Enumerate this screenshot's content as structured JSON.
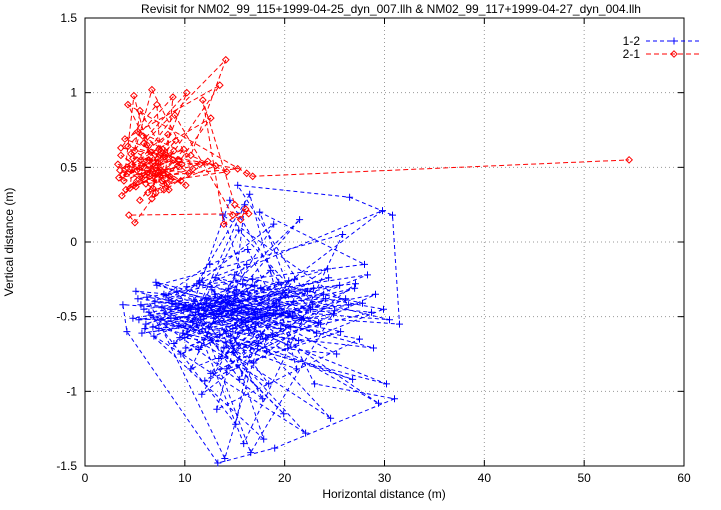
{
  "chart_data": {
    "type": "scatter",
    "title": "Revisit for NM02_99_115+1999-04-25_dyn_007.llh & NM02_99_117+1999-04-27_dyn_004.llh",
    "xlabel": "Horizontal distance (m)",
    "ylabel": "Vertical distance (m)",
    "xlim": [
      0,
      60
    ],
    "ylim": [
      -1.5,
      1.5
    ],
    "xticks": [
      0,
      10,
      20,
      30,
      40,
      50,
      60
    ],
    "yticks": [
      -1.5,
      -1,
      -0.5,
      0,
      0.5,
      1,
      1.5
    ],
    "grid": true,
    "grid_style": "dotted",
    "grid_color": "#9a9a9a",
    "legend_position": "top-right",
    "series": [
      {
        "name": "1-2",
        "color": "#0000ff",
        "marker": "plus",
        "linestyle": "dashed",
        "points": [
          [
            15.2,
            -0.32
          ],
          [
            6.1,
            -0.55
          ],
          [
            24.3,
            -0.18
          ],
          [
            11.4,
            -0.72
          ],
          [
            18.9,
            0.12
          ],
          [
            8.7,
            -0.41
          ],
          [
            27.5,
            -0.65
          ],
          [
            13.2,
            -1.12
          ],
          [
            16.8,
            -0.25
          ],
          [
            5.3,
            -0.38
          ],
          [
            21.7,
            -0.52
          ],
          [
            14.5,
            0.28
          ],
          [
            9.8,
            -0.61
          ],
          [
            29.1,
            -0.35
          ],
          [
            12.6,
            -0.88
          ],
          [
            17.3,
            -0.47
          ],
          [
            7.2,
            -0.29
          ],
          [
            25.8,
            0.05
          ],
          [
            15.9,
            -1.35
          ],
          [
            10.5,
            -0.44
          ],
          [
            19.6,
            -0.58
          ],
          [
            4.8,
            -0.51
          ],
          [
            22.9,
            -0.31
          ],
          [
            14.1,
            -0.67
          ],
          [
            30.2,
            -0.95
          ],
          [
            8.1,
            -0.36
          ],
          [
            16.2,
            -0.15
          ],
          [
            11.9,
            -0.49
          ],
          [
            26.4,
            -0.42
          ],
          [
            13.8,
            0.18
          ],
          [
            18.2,
            -0.73
          ],
          [
            6.8,
            -0.57
          ],
          [
            20.4,
            -0.26
          ],
          [
            15.5,
            -0.92
          ],
          [
            9.2,
            -0.33
          ],
          [
            23.6,
            -0.55
          ],
          [
            12.1,
            -0.38
          ],
          [
            17.8,
            -1.05
          ],
          [
            5.9,
            -0.45
          ],
          [
            28.3,
            -0.22
          ],
          [
            14.8,
            -0.58
          ],
          [
            10.1,
            -0.71
          ],
          [
            19.2,
            -0.41
          ],
          [
            7.6,
            -0.52
          ],
          [
            21.2,
            -0.85
          ],
          [
            16.5,
            0.32
          ],
          [
            11.2,
            -0.28
          ],
          [
            24.9,
            -0.48
          ],
          [
            13.5,
            -0.62
          ],
          [
            29.8,
            0.21
          ],
          [
            8.4,
            -0.39
          ],
          [
            17.1,
            -0.55
          ],
          [
            15.1,
            -1.22
          ],
          [
            6.4,
            -0.47
          ],
          [
            22.3,
            -0.33
          ],
          [
            12.9,
            -0.51
          ],
          [
            18.6,
            -0.19
          ],
          [
            9.5,
            -0.64
          ],
          [
            25.2,
            -0.75
          ],
          [
            14.3,
            -0.36
          ],
          [
            20.8,
            -0.49
          ],
          [
            5.6,
            -0.42
          ],
          [
            27.1,
            -0.28
          ],
          [
            16.9,
            -0.81
          ],
          [
            10.8,
            -0.53
          ],
          [
            19.9,
            -1.15
          ],
          [
            7.9,
            -0.35
          ],
          [
            23.2,
            -0.61
          ],
          [
            13.1,
            -0.24
          ],
          [
            30.5,
            -0.52
          ],
          [
            15.7,
            -0.44
          ],
          [
            8.9,
            -0.68
          ],
          [
            21.5,
            0.15
          ],
          [
            12.4,
            -0.57
          ],
          [
            17.6,
            -0.31
          ],
          [
            6.6,
            -0.49
          ],
          [
            26.8,
            -0.92
          ],
          [
            14.6,
            -0.63
          ],
          [
            19.4,
            -0.27
          ],
          [
            9.9,
            -0.45
          ],
          [
            24.1,
            -0.38
          ],
          [
            11.7,
            -1.02
          ],
          [
            16.1,
            -0.54
          ],
          [
            5.1,
            -0.33
          ],
          [
            28.7,
            -0.47
          ],
          [
            13.9,
            -0.71
          ],
          [
            20.1,
            -0.36
          ],
          [
            7.4,
            -0.58
          ],
          [
            22.6,
            -0.45
          ],
          [
            15.4,
            0.08
          ],
          [
            10.3,
            -0.62
          ],
          [
            18.4,
            -0.95
          ],
          [
            12.2,
            -0.41
          ],
          [
            25.5,
            -0.29
          ],
          [
            8.2,
            -0.55
          ],
          [
            17.4,
            -0.68
          ],
          [
            14.0,
            -1.45
          ],
          [
            6.2,
            -0.37
          ],
          [
            21.9,
            -0.51
          ],
          [
            11.5,
            -0.26
          ],
          [
            29.4,
            -1.08
          ],
          [
            16.4,
            -0.59
          ],
          [
            9.1,
            -0.43
          ],
          [
            23.9,
            -0.35
          ],
          [
            13.4,
            -0.78
          ],
          [
            19.1,
            -0.48
          ],
          [
            5.7,
            -0.61
          ],
          [
            27.8,
            -0.41
          ],
          [
            15.0,
            -0.22
          ],
          [
            10.6,
            -0.85
          ],
          [
            20.6,
            -0.57
          ],
          [
            7.7,
            -0.44
          ],
          [
            24.6,
            -1.18
          ],
          [
            12.7,
            -0.32
          ],
          [
            18.1,
            -0.65
          ],
          [
            8.6,
            -0.51
          ],
          [
            26.1,
            -0.38
          ],
          [
            14.9,
            -0.74
          ],
          [
            21.0,
            -0.25
          ],
          [
            6.9,
            -0.63
          ],
          [
            22.1,
            -1.28
          ],
          [
            11.1,
            -0.47
          ],
          [
            17.0,
            -0.29
          ],
          [
            9.4,
            -0.56
          ],
          [
            28.9,
            -0.71
          ],
          [
            13.6,
            -0.43
          ],
          [
            19.8,
            -0.34
          ],
          [
            5.4,
            -0.52
          ],
          [
            25.0,
            -0.46
          ],
          [
            16.6,
            -1.41
          ],
          [
            10.9,
            -0.39
          ],
          [
            20.3,
            -0.69
          ],
          [
            7.1,
            -0.27
          ],
          [
            23.4,
            -0.54
          ],
          [
            14.4,
            -0.31
          ],
          [
            18.8,
            -0.62
          ],
          [
            12.0,
            -0.93
          ],
          [
            29.9,
            -0.45
          ],
          [
            15.8,
            -0.28
          ],
          [
            8.0,
            -0.48
          ],
          [
            21.4,
            -0.66
          ],
          [
            13.0,
            -0.35
          ],
          [
            17.9,
            -1.32
          ],
          [
            6.0,
            -0.58
          ],
          [
            24.4,
            -0.24
          ],
          [
            11.6,
            -0.52
          ],
          [
            19.5,
            -0.43
          ],
          [
            9.6,
            -0.75
          ],
          [
            27.0,
            -0.31
          ],
          [
            14.7,
            -0.49
          ],
          [
            16.0,
            0.25
          ],
          [
            10.0,
            -0.64
          ],
          [
            22.8,
            -0.42
          ],
          [
            15.3,
            0.38
          ],
          [
            26.5,
            0.3
          ],
          [
            30.8,
            0.18
          ],
          [
            31.5,
            -0.55
          ],
          [
            3.8,
            -0.42
          ],
          [
            4.2,
            -0.6
          ],
          [
            13.3,
            -1.48
          ],
          [
            19.0,
            -1.38
          ],
          [
            31.0,
            -1.05
          ],
          [
            23.0,
            -0.95
          ],
          [
            16.3,
            -0.05
          ],
          [
            12.5,
            -0.15
          ],
          [
            7.0,
            -0.4
          ],
          [
            18.0,
            -0.5
          ],
          [
            25.6,
            -0.6
          ],
          [
            14.2,
            -0.85
          ],
          [
            20.9,
            -0.4
          ],
          [
            17.5,
            0.2
          ],
          [
            28.0,
            -0.15
          ],
          [
            10.2,
            -0.3
          ]
        ]
      },
      {
        "name": "2-1",
        "color": "#ff0000",
        "marker": "diamond",
        "linestyle": "dashed",
        "points": [
          [
            5.2,
            0.48
          ],
          [
            7.8,
            0.62
          ],
          [
            4.1,
            0.35
          ],
          [
            9.3,
            0.51
          ],
          [
            6.5,
            0.44
          ],
          [
            3.6,
            0.58
          ],
          [
            8.2,
            0.39
          ],
          [
            5.8,
            0.71
          ],
          [
            10.4,
            0.46
          ],
          [
            4.7,
            0.52
          ],
          [
            7.1,
            0.33
          ],
          [
            6.2,
            0.65
          ],
          [
            4.9,
            0.98
          ],
          [
            3.9,
            0.41
          ],
          [
            8.8,
            0.55
          ],
          [
            5.5,
            0.28
          ],
          [
            9.9,
            0.62
          ],
          [
            4.4,
            0.47
          ],
          [
            7.5,
            0.58
          ],
          [
            6.8,
            0.36
          ],
          [
            3.3,
            0.52
          ],
          [
            8.5,
            0.44
          ],
          [
            5.0,
            0.61
          ],
          [
            6.7,
            1.02
          ],
          [
            10.8,
            0.49
          ],
          [
            4.9,
            0.38
          ],
          [
            7.3,
            0.53
          ],
          [
            6.0,
            0.45
          ],
          [
            9.1,
            0.68
          ],
          [
            3.7,
            0.31
          ],
          [
            8.0,
            0.57
          ],
          [
            5.4,
            0.42
          ],
          [
            11.5,
            0.52
          ],
          [
            4.3,
            0.64
          ],
          [
            8.8,
            0.97
          ],
          [
            7.9,
            0.35
          ],
          [
            6.4,
            0.55
          ],
          [
            9.6,
            0.41
          ],
          [
            3.5,
            0.48
          ],
          [
            8.3,
            0.72
          ],
          [
            5.7,
            0.51
          ],
          [
            10.1,
            0.38
          ],
          [
            4.6,
            0.59
          ],
          [
            10.2,
            1.0
          ],
          [
            7.0,
            0.46
          ],
          [
            6.7,
            0.29
          ],
          [
            12.3,
            0.54
          ],
          [
            3.4,
            0.43
          ],
          [
            8.9,
            0.61
          ],
          [
            5.1,
            0.37
          ],
          [
            9.4,
            0.55
          ],
          [
            4.0,
            0.69
          ],
          [
            13.5,
            1.05
          ],
          [
            7.6,
            0.48
          ],
          [
            6.3,
            0.33
          ],
          [
            13.1,
            0.51
          ],
          [
            4.8,
            0.56
          ],
          [
            8.6,
            0.42
          ],
          [
            5.9,
            0.66
          ],
          [
            14.1,
            1.22
          ],
          [
            10.6,
            0.58
          ],
          [
            3.8,
            0.45
          ],
          [
            7.4,
            0.62
          ],
          [
            6.1,
            0.39
          ],
          [
            14.2,
            0.47
          ],
          [
            5.3,
            0.74
          ],
          [
            9.7,
            0.52
          ],
          [
            4.5,
            0.36
          ],
          [
            5.5,
            0.88
          ],
          [
            8.1,
            0.58
          ],
          [
            6.9,
            0.44
          ],
          [
            15.3,
            0.49
          ],
          [
            3.6,
            0.63
          ],
          [
            7.2,
            0.92
          ],
          [
            7.7,
            0.41
          ],
          [
            5.6,
            0.55
          ],
          [
            9.0,
            0.85
          ],
          [
            14.8,
            0.18
          ],
          [
            15.6,
            0.15
          ],
          [
            16.1,
            0.22
          ],
          [
            13.9,
            0.12
          ],
          [
            11.8,
            0.95
          ],
          [
            15.0,
            0.25
          ],
          [
            16.4,
            0.19
          ],
          [
            4.4,
            0.18
          ],
          [
            5.0,
            0.13
          ],
          [
            12.6,
            0.83
          ],
          [
            4.2,
            0.5
          ],
          [
            8.4,
            0.35
          ],
          [
            6.6,
            0.6
          ],
          [
            4.3,
            0.92
          ],
          [
            16.2,
            0.46
          ],
          [
            16.8,
            0.44
          ],
          [
            54.5,
            0.55
          ]
        ]
      }
    ]
  }
}
